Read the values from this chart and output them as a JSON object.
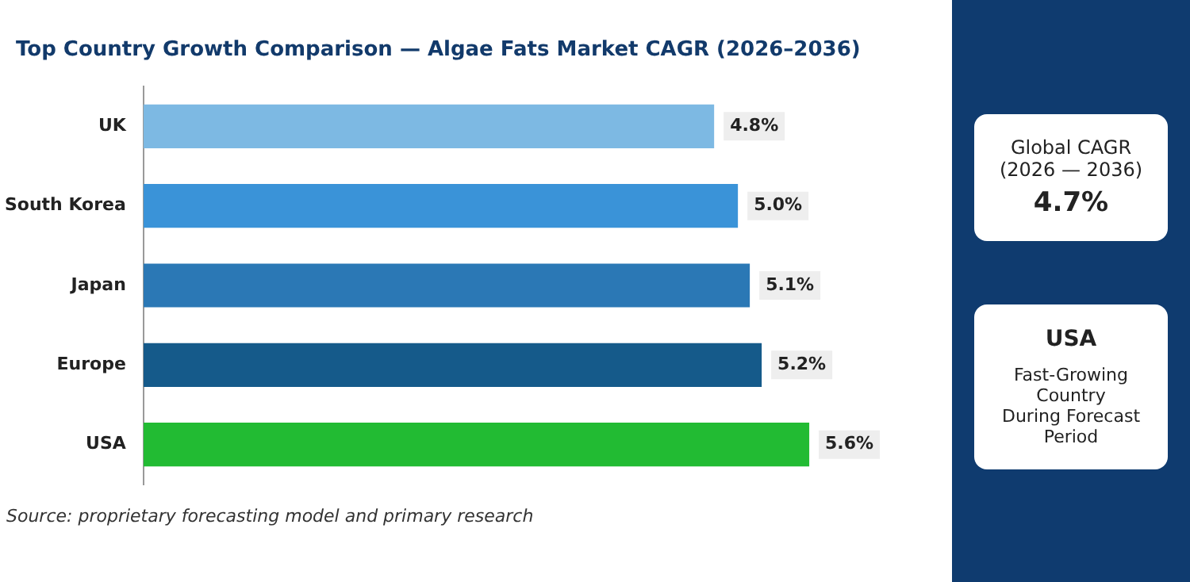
{
  "chart_data": {
    "type": "bar",
    "orientation": "horizontal",
    "title": "Top Country Growth Comparison — Algae Fats Market CAGR (2026–2036)",
    "categories": [
      "UK",
      "South Korea",
      "Japan",
      "Europe",
      "USA"
    ],
    "values": [
      4.8,
      5.0,
      5.1,
      5.2,
      5.6
    ],
    "colors": [
      "#7db9e3",
      "#3a93d8",
      "#2b78b5",
      "#155a8a",
      "#22bb33"
    ],
    "value_labels": [
      "4.8%",
      "5.0%",
      "5.1%",
      "5.2%",
      "5.6%"
    ],
    "grid": false,
    "legend": false,
    "tick_labels": "y",
    "annotations": [
      "Global CAGR",
      "(2026 — 2036)",
      "4.7%",
      "USA",
      "Fast-Growing Country",
      "During Forecast Period",
      "Source: proprietary forecasting model and primary research"
    ]
  }
}
